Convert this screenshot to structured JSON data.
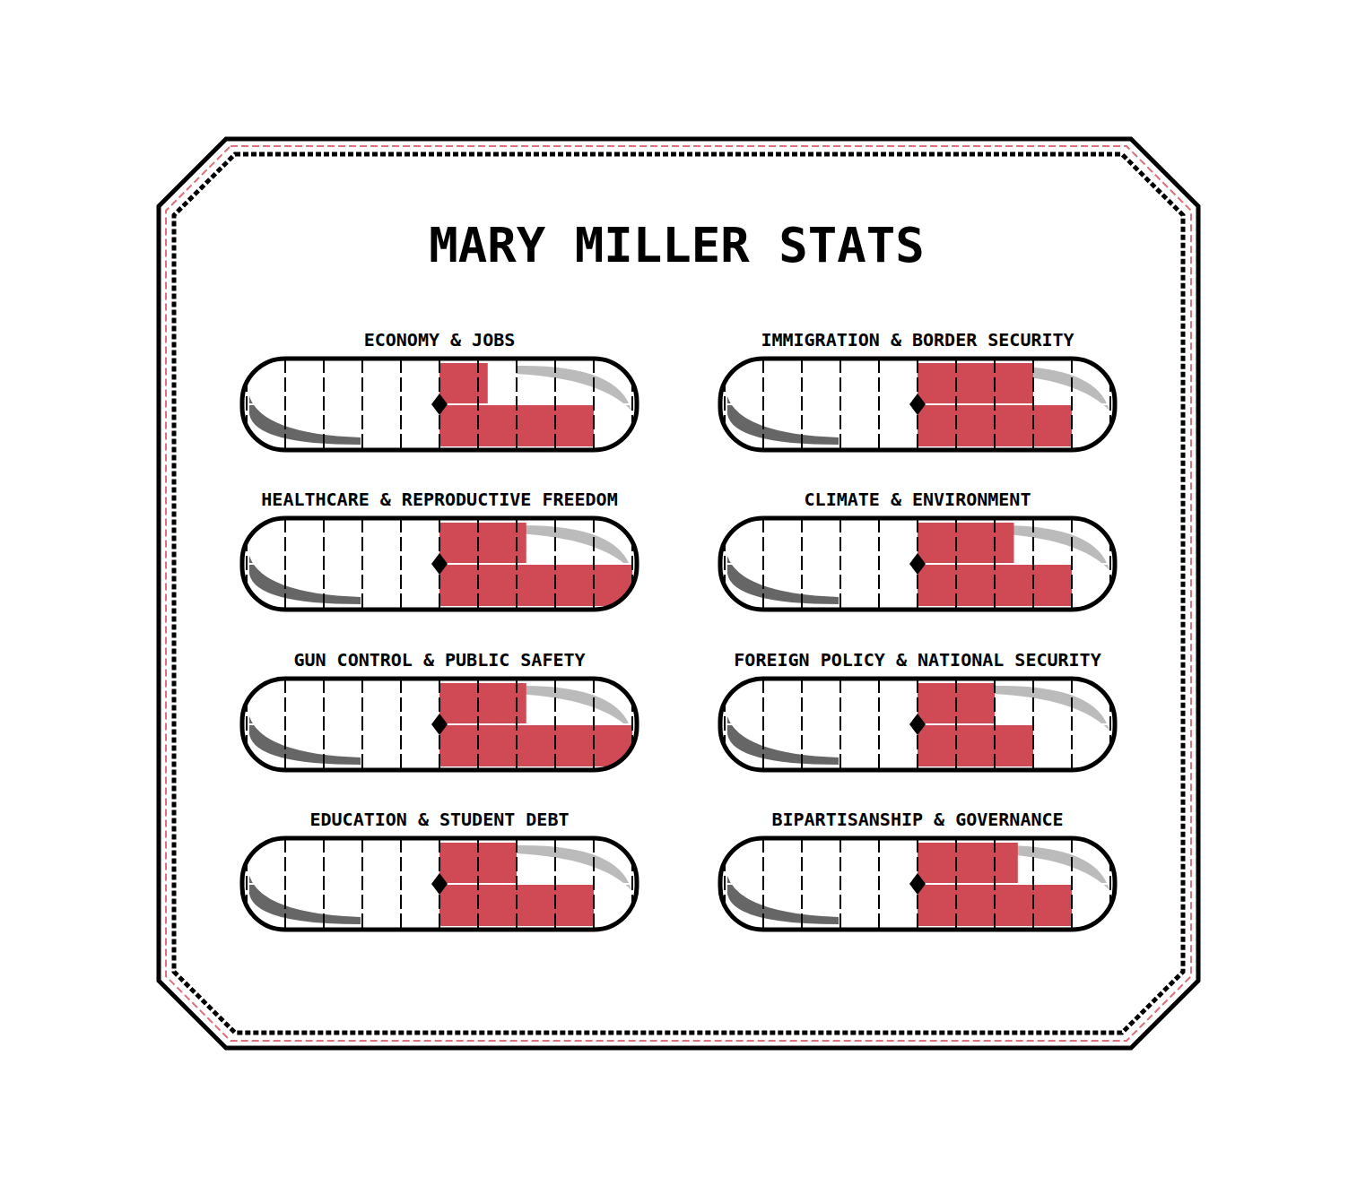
{
  "title": "MARY MILLER STATS",
  "chart_data": [
    {
      "type": "bar",
      "orientation": "horizontal",
      "title": "ECONOMY & JOBS",
      "categories": [
        null,
        null
      ],
      "values": [
        1.25,
        4
      ],
      "color": "#d04a55",
      "xlim": [
        -5,
        5
      ],
      "xticks": [
        -5,
        -4,
        -3,
        -2,
        -1,
        0,
        1,
        2,
        3,
        4,
        5
      ],
      "tick_labels": false,
      "grid": true
    },
    {
      "type": "bar",
      "orientation": "horizontal",
      "title": "IMMIGRATION & BORDER SECURITY",
      "categories": [
        null,
        null
      ],
      "values": [
        3,
        4
      ],
      "color": "#d04a55",
      "xlim": [
        -5,
        5
      ],
      "xticks": [
        -5,
        -4,
        -3,
        -2,
        -1,
        0,
        1,
        2,
        3,
        4,
        5
      ],
      "tick_labels": false,
      "grid": true
    },
    {
      "type": "bar",
      "orientation": "horizontal",
      "title": "HEALTHCARE & REPRODUCTIVE FREEDOM",
      "categories": [
        null,
        null
      ],
      "values": [
        2.25,
        5
      ],
      "color": "#d04a55",
      "xlim": [
        -5,
        5
      ],
      "xticks": [
        -5,
        -4,
        -3,
        -2,
        -1,
        0,
        1,
        2,
        3,
        4,
        5
      ],
      "tick_labels": false,
      "grid": true
    },
    {
      "type": "bar",
      "orientation": "horizontal",
      "title": "CLIMATE & ENVIRONMENT",
      "categories": [
        null,
        null
      ],
      "values": [
        2.5,
        4
      ],
      "color": "#d04a55",
      "xlim": [
        -5,
        5
      ],
      "xticks": [
        -5,
        -4,
        -3,
        -2,
        -1,
        0,
        1,
        2,
        3,
        4,
        5
      ],
      "tick_labels": false,
      "grid": true
    },
    {
      "type": "bar",
      "orientation": "horizontal",
      "title": "GUN CONTROL & PUBLIC SAFETY",
      "categories": [
        null,
        null
      ],
      "values": [
        2.25,
        5
      ],
      "color": "#d04a55",
      "xlim": [
        -5,
        5
      ],
      "xticks": [
        -5,
        -4,
        -3,
        -2,
        -1,
        0,
        1,
        2,
        3,
        4,
        5
      ],
      "tick_labels": false,
      "grid": true
    },
    {
      "type": "bar",
      "orientation": "horizontal",
      "title": "FOREIGN POLICY & NATIONAL SECURITY",
      "categories": [
        null,
        null
      ],
      "values": [
        2,
        3
      ],
      "color": "#d04a55",
      "xlim": [
        -5,
        5
      ],
      "xticks": [
        -5,
        -4,
        -3,
        -2,
        -1,
        0,
        1,
        2,
        3,
        4,
        5
      ],
      "tick_labels": false,
      "grid": true
    },
    {
      "type": "bar",
      "orientation": "horizontal",
      "title": "EDUCATION & STUDENT DEBT",
      "categories": [
        null,
        null
      ],
      "values": [
        2,
        4
      ],
      "color": "#d04a55",
      "xlim": [
        -5,
        5
      ],
      "xticks": [
        -5,
        -4,
        -3,
        -2,
        -1,
        0,
        1,
        2,
        3,
        4,
        5
      ],
      "tick_labels": false,
      "grid": true
    },
    {
      "type": "bar",
      "orientation": "horizontal",
      "title": "BIPARTISANSHIP & GOVERNANCE",
      "categories": [
        null,
        null
      ],
      "values": [
        2.6,
        4
      ],
      "color": "#d04a55",
      "xlim": [
        -5,
        5
      ],
      "xticks": [
        -5,
        -4,
        -3,
        -2,
        -1,
        0,
        1,
        2,
        3,
        4,
        5
      ],
      "tick_labels": false,
      "grid": true
    }
  ]
}
